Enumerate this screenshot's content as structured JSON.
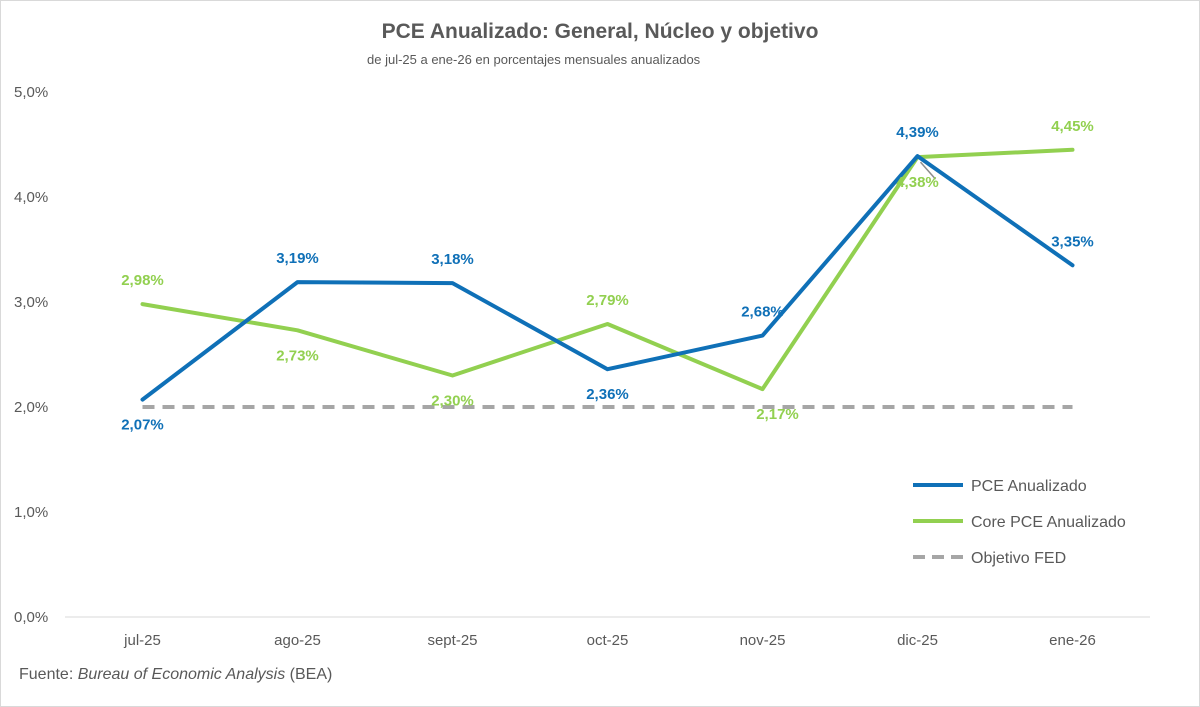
{
  "colors": {
    "pce": "#0f70b7",
    "core": "#92d050",
    "target": "#a6a6a6",
    "text": "#595959"
  },
  "source": {
    "prefix": "Fuente: ",
    "name": "Bureau of Economic Analysis",
    "suffix": " (BEA)"
  },
  "chart_data": {
    "type": "line",
    "title": "PCE Anualizado: General, Núcleo y objetivo",
    "subtitle": "de jul-25 a ene-26 en porcentajes mensuales anualizados",
    "categories": [
      "jul-25",
      "ago-25",
      "sept-25",
      "oct-25",
      "nov-25",
      "dic-25",
      "ene-26"
    ],
    "ylim": [
      0,
      5
    ],
    "yticks": [
      0,
      1,
      2,
      3,
      4,
      5
    ],
    "ytick_labels": [
      "0,0%",
      "1,0%",
      "2,0%",
      "3,0%",
      "4,0%",
      "5,0%"
    ],
    "legend_position": "right",
    "series": [
      {
        "key": "pce",
        "name": "PCE Anualizado",
        "color": "#0f70b7",
        "style": "solid",
        "values": [
          2.07,
          3.19,
          3.18,
          2.36,
          2.68,
          4.39,
          3.35
        ],
        "labels": [
          "2,07%",
          "3,19%",
          "3,18%",
          "2,36%",
          "2,68%",
          "4,39%",
          "3,35%"
        ],
        "label_pos": [
          "below",
          "above",
          "above",
          "below",
          "above",
          "above",
          "above"
        ]
      },
      {
        "key": "core",
        "name": "Core PCE Anualizado",
        "color": "#92d050",
        "style": "solid",
        "values": [
          2.98,
          2.73,
          2.3,
          2.79,
          2.17,
          4.38,
          4.45
        ],
        "labels": [
          "2,98%",
          "2,73%",
          "2,30%",
          "2,79%",
          "2,17%",
          "4,38%",
          "4,45%"
        ],
        "label_pos": [
          "above",
          "below",
          "below",
          "above",
          "below",
          "below",
          "above"
        ]
      },
      {
        "key": "target",
        "name": "Objetivo FED",
        "color": "#a6a6a6",
        "style": "dashed",
        "values": [
          2.0,
          2.0,
          2.0,
          2.0,
          2.0,
          2.0,
          2.0
        ],
        "labels": null
      }
    ]
  }
}
